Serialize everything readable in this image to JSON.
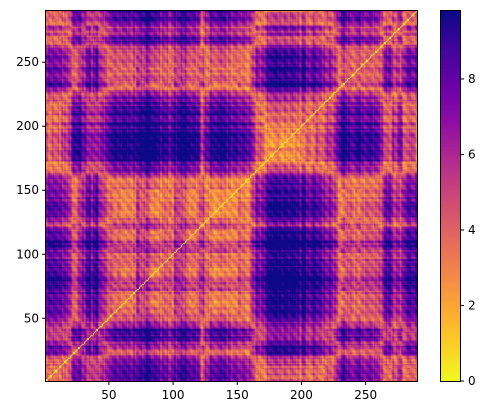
{
  "chart_data": {
    "type": "heatmap",
    "title": "",
    "xlabel": "",
    "ylabel": "",
    "xlim": [
      1,
      290
    ],
    "ylim": [
      1,
      290
    ],
    "x_ticks": [
      50,
      100,
      150,
      200,
      250
    ],
    "y_ticks": [
      50,
      100,
      150,
      200,
      250
    ],
    "colormap": "plasma_r",
    "colorbar": {
      "range": [
        0,
        9.8
      ],
      "ticks": [
        0,
        2,
        4,
        6,
        8
      ]
    },
    "description_values": {
      "diagonal": 0,
      "max": 9.8
    }
  },
  "labels": {
    "x_ticks": [
      "50",
      "100",
      "150",
      "200",
      "250"
    ],
    "y_ticks": [
      "50",
      "100",
      "150",
      "200",
      "250"
    ],
    "cbar_ticks": [
      "0",
      "2",
      "4",
      "6",
      "8"
    ]
  }
}
